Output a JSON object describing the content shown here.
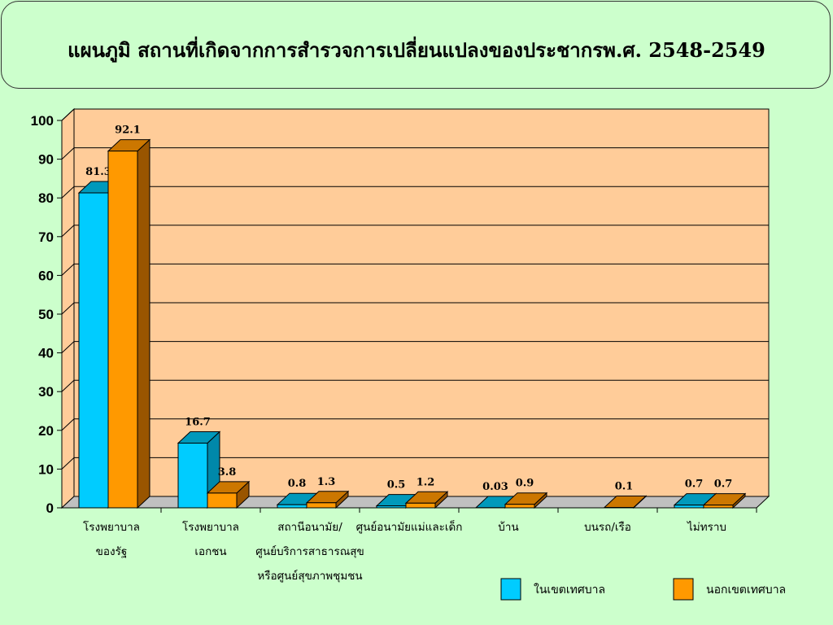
{
  "title": "แผนภูมิ สถานที่เกิดจากการสำรวจการเปลี่ยนแปลงของประชากรพ.ศ. 2548-2549",
  "colors": {
    "series1": "#00ccff",
    "series1_top": "#0099bb",
    "series1_side": "#0088aa",
    "series2": "#ff9900",
    "series2_top": "#cc7700",
    "series2_side": "#995500",
    "plot_bg": "#ffcc99",
    "floor": "#c0c0c0",
    "background": "#ccffcc"
  },
  "chart_data": {
    "type": "bar",
    "categories": [
      [
        "โรงพยาบาล",
        "ของรัฐ"
      ],
      [
        "โรงพยาบาล",
        "เอกชน"
      ],
      [
        "สถานีอนามัย/",
        "ศูนย์บริการสาธารณสุข",
        "หรือศูนย์สุขภาพชุมชน"
      ],
      [
        "ศูนย์อนามัยแม่และเด็ก"
      ],
      [
        "บ้าน"
      ],
      [
        "บนรถ/เรือ"
      ],
      [
        "ไม่ทราบ"
      ]
    ],
    "series": [
      {
        "name": "ในเขตเทศบาล",
        "values": [
          81.3,
          16.7,
          0.8,
          0.5,
          0.03,
          null,
          0.7
        ],
        "labels": [
          "81.3",
          "16.7",
          "0.8",
          "0.5",
          "0.03",
          "",
          "0.7"
        ]
      },
      {
        "name": "นอกเขตเทศบาล",
        "values": [
          92.1,
          3.8,
          1.3,
          1.2,
          0.9,
          0.1,
          0.7
        ],
        "labels": [
          "92.1",
          "3.8",
          "1.3",
          "1.2",
          "0.9",
          "0.1",
          "0.7"
        ]
      }
    ],
    "yticks": [
      "0",
      "10",
      "20",
      "30",
      "40",
      "50",
      "60",
      "70",
      "80",
      "90",
      "100"
    ],
    "ylim": [
      0,
      100
    ],
    "grid": true,
    "legend_position": "bottom-right",
    "style": "3d-clustered-column"
  }
}
